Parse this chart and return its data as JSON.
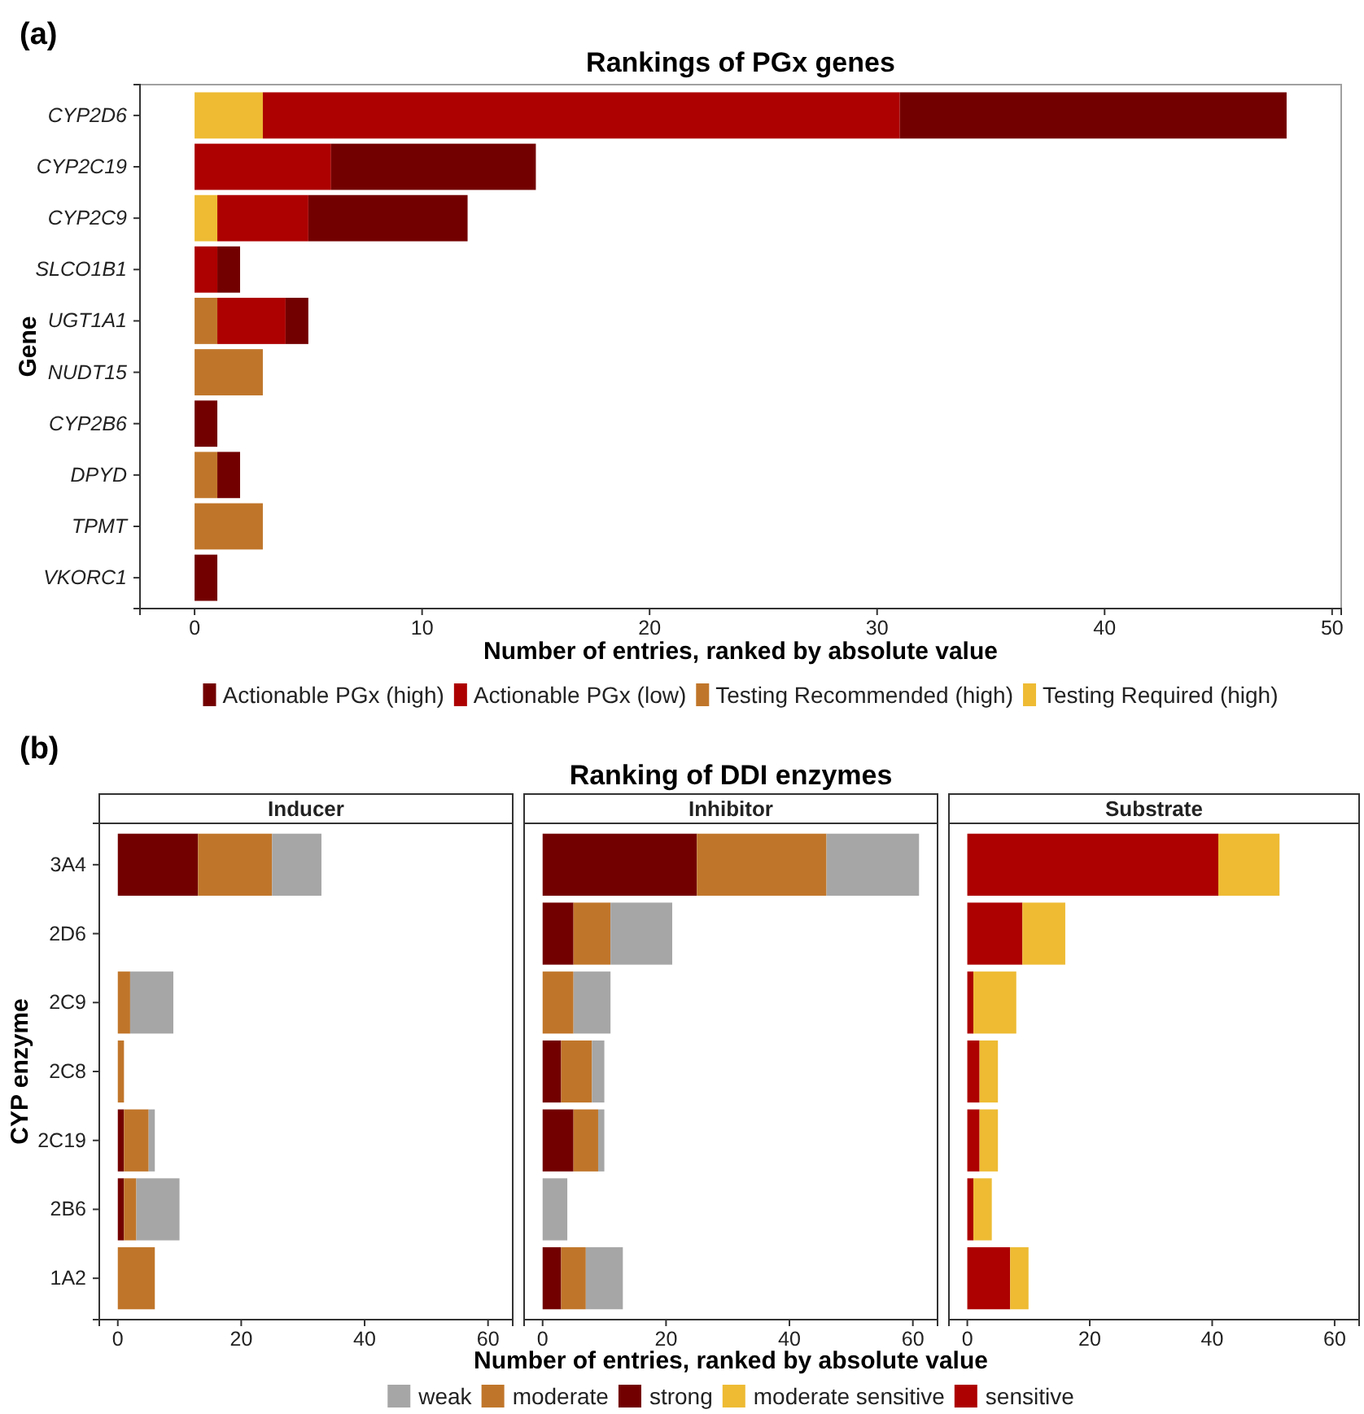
{
  "chart_data": [
    {
      "type": "bar",
      "orientation": "horizontal",
      "stacked": true,
      "title": "Rankings of PGx genes",
      "xlabel": "Number of entries, ranked by absolute value",
      "ylabel": "Gene",
      "annotations": [
        "(a)"
      ],
      "categories": [
        "CYP2D6",
        "CYP2C19",
        "CYP2C9",
        "SLCO1B1",
        "UGT1A1",
        "NUDT15",
        "CYP2B6",
        "DPYD",
        "TPMT",
        "VKORC1"
      ],
      "series": [
        {
          "name": "Testing Required (high)",
          "color": "#eebb33",
          "values": [
            3,
            null,
            1,
            null,
            null,
            null,
            null,
            null,
            null,
            null
          ]
        },
        {
          "name": "Testing Recommended (high)",
          "color": "#c0762a",
          "values": [
            null,
            null,
            null,
            null,
            1,
            3,
            null,
            1,
            3,
            null
          ]
        },
        {
          "name": "Actionable PGx (low)",
          "color": "#ad0000",
          "values": [
            28,
            6,
            4,
            1,
            3,
            null,
            null,
            null,
            null,
            null
          ]
        },
        {
          "name": "Actionable PGx (high)",
          "color": "#730000",
          "values": [
            17,
            9,
            7,
            1,
            1,
            null,
            1,
            1,
            null,
            1
          ]
        }
      ],
      "xlim": [
        -2.4,
        50.4
      ],
      "xticks": [
        0,
        10,
        20,
        30,
        40,
        50
      ],
      "legend": "bottom"
    },
    {
      "type": "bar",
      "orientation": "horizontal",
      "stacked": true,
      "subtitle": "Inducer",
      "ylabel": "CYP enzyme",
      "annotations": [
        "(b)"
      ],
      "categories": [
        "3A4",
        "2D6",
        "2C9",
        "2C8",
        "2C19",
        "2B6",
        "1A2"
      ],
      "series": [
        {
          "name": "strong",
          "color": "#730000",
          "values": [
            13,
            null,
            null,
            null,
            1,
            1,
            null
          ]
        },
        {
          "name": "moderate",
          "color": "#c0762a",
          "values": [
            12,
            null,
            2,
            1,
            4,
            2,
            6
          ]
        },
        {
          "name": "weak",
          "color": "#a6a6a6",
          "values": [
            8,
            null,
            7,
            null,
            1,
            7,
            null
          ]
        }
      ],
      "xlim": [
        -3,
        64
      ],
      "xticks": [
        0,
        20,
        40,
        60
      ],
      "legend": "bottom"
    },
    {
      "type": "bar",
      "orientation": "horizontal",
      "stacked": true,
      "title": "Ranking of DDI enzymes",
      "subtitle": "Inhibitor",
      "xlabel": "Number of entries, ranked by absolute value",
      "categories": [
        null,
        null,
        null,
        null,
        null,
        null,
        null
      ],
      "series": [
        {
          "name": "strong",
          "color": "#730000",
          "values": [
            25,
            5,
            null,
            3,
            5,
            null,
            3
          ]
        },
        {
          "name": "moderate",
          "color": "#c0762a",
          "values": [
            21,
            6,
            5,
            5,
            4,
            null,
            4
          ]
        },
        {
          "name": "weak",
          "color": "#a6a6a6",
          "values": [
            15,
            10,
            6,
            2,
            1,
            4,
            6
          ]
        }
      ],
      "xlim": [
        -3,
        64
      ],
      "xticks": [
        0,
        20,
        40,
        60
      ],
      "tick_labels": "x",
      "legend": "bottom"
    },
    {
      "type": "bar",
      "orientation": "horizontal",
      "stacked": true,
      "subtitle": "Substrate",
      "categories": [
        null,
        null,
        null,
        null,
        null,
        null,
        null
      ],
      "series": [
        {
          "name": "sensitive",
          "color": "#ad0000",
          "values": [
            41,
            9,
            1,
            2,
            2,
            1,
            7
          ]
        },
        {
          "name": "moderate sensitive",
          "color": "#eebb33",
          "values": [
            10,
            7,
            7,
            3,
            3,
            3,
            3
          ]
        }
      ],
      "xlim": [
        -3,
        64
      ],
      "xticks": [
        0,
        20,
        40,
        60
      ],
      "tick_labels": "x",
      "legend": "bottom"
    }
  ]
}
